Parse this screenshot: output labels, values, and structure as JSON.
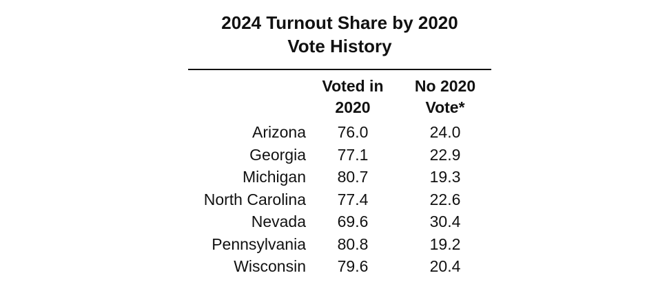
{
  "chart_data": {
    "type": "table",
    "title": "2024 Turnout Share by 2020 Vote History",
    "title_lines": [
      "2024 Turnout Share by 2020",
      "Vote History"
    ],
    "columns": [
      {
        "name": "Voted in 2020",
        "lines": [
          "Voted in",
          "2020"
        ]
      },
      {
        "name": "No 2020 Vote*",
        "lines": [
          "No 2020",
          "Vote*"
        ]
      }
    ],
    "rows": [
      {
        "label": "Arizona",
        "values": [
          "76.0",
          "24.0"
        ]
      },
      {
        "label": "Georgia",
        "values": [
          "77.1",
          "22.9"
        ]
      },
      {
        "label": "Michigan",
        "values": [
          "80.7",
          "19.3"
        ]
      },
      {
        "label": "North Carolina",
        "values": [
          "77.4",
          "22.6"
        ]
      },
      {
        "label": "Nevada",
        "values": [
          "69.6",
          "30.4"
        ]
      },
      {
        "label": "Pennsylvania",
        "values": [
          "80.8",
          "19.2"
        ]
      },
      {
        "label": "Wisconsin",
        "values": [
          "79.6",
          "20.4"
        ]
      }
    ]
  }
}
